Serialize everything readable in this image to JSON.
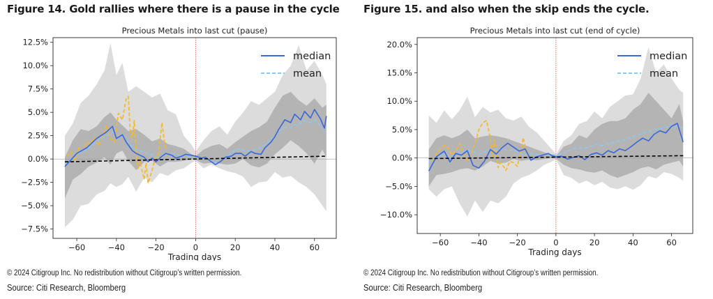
{
  "figures": [
    {
      "heading": "Figure 14. Gold rallies where there is a pause in the cycle",
      "copyright": "© 2024 Citigroup Inc. No redistribution without Citigroup’s written permission.",
      "source": "Source: Citi Research, Bloomberg"
    },
    {
      "heading": "Figure 15. and also when the skip ends the cycle.",
      "copyright": "© 2024 Citigroup Inc. No redistribution without Citigroup’s written permission.",
      "source": "Source: Citi Research, Bloomberg"
    }
  ],
  "chart_data": [
    {
      "type": "line",
      "title": "Precious Metals into last cut (pause)",
      "xlabel": "Trading days",
      "ylabel": "",
      "xlim": [
        -72,
        71
      ],
      "ylim": [
        -8.5,
        13.0
      ],
      "xticks": [
        -60,
        -40,
        -20,
        0,
        20,
        40,
        60
      ],
      "yticks": [
        -7.5,
        -5.0,
        -2.5,
        0.0,
        2.5,
        5.0,
        7.5,
        10.0,
        12.5
      ],
      "ytick_labels": [
        "−7.5%",
        "−5.0%",
        "−2.5%",
        "0.0%",
        "2.5%",
        "5.0%",
        "7.5%",
        "10.0%",
        "12.5%"
      ],
      "xtick_labels": [
        "−60",
        "−40",
        "−20",
        "0",
        "20",
        "40",
        "60"
      ],
      "vline_x": 0,
      "legend": {
        "position": "top-right",
        "entries": [
          "median",
          "mean"
        ]
      },
      "colors": {
        "median": "#3a66d6",
        "mean": "#8cc8f2",
        "highlight": "#f5b82e",
        "trend": "#000000",
        "vline": "#e85a5a",
        "outer_band": "#dcdcdc",
        "inner_band": "#b4b4b4"
      },
      "x": [
        -66,
        -60,
        -55,
        -50,
        -45,
        -42,
        -40,
        -37,
        -35,
        -32,
        -30,
        -28,
        -26,
        -24,
        -22,
        -20,
        -17,
        -15,
        -12,
        -10,
        -7,
        -5,
        -2,
        0,
        3,
        5,
        8,
        10,
        13,
        15,
        18,
        20,
        23,
        25,
        28,
        30,
        33,
        35,
        38,
        40,
        42,
        45,
        48,
        50,
        53,
        55,
        58,
        60,
        63,
        65,
        66
      ],
      "series": [
        {
          "name": "median",
          "values": [
            -0.8,
            0.6,
            1.2,
            2.2,
            2.9,
            3.5,
            2.2,
            2.6,
            1.8,
            0.9,
            0.6,
            0.4,
            0.2,
            -0.3,
            0.1,
            -0.3,
            0.3,
            0.6,
            0.4,
            0.1,
            0.3,
            0.5,
            0.4,
            0.3,
            0.1,
            0.2,
            -0.3,
            -0.6,
            -0.2,
            0.2,
            0.3,
            0.6,
            0.6,
            0.3,
            0.8,
            0.6,
            0.5,
            1.2,
            1.8,
            2.4,
            3.2,
            4.2,
            3.9,
            4.8,
            4.2,
            5.1,
            4.4,
            5.3,
            4.3,
            3.3,
            4.6
          ]
        },
        {
          "name": "mean",
          "values": [
            -0.5,
            0.5,
            1.0,
            1.9,
            2.5,
            2.9,
            2.3,
            2.6,
            2.0,
            1.3,
            1.0,
            0.9,
            0.7,
            0.6,
            0.5,
            0.2,
            0.4,
            0.5,
            0.6,
            0.5,
            0.3,
            0.4,
            0.2,
            0.3,
            0.1,
            0.1,
            -0.2,
            -0.4,
            -0.2,
            0.3,
            0.6,
            1.0,
            1.1,
            0.8,
            0.9,
            1.0,
            1.2,
            1.6,
            2.1,
            2.5,
            2.9,
            3.4,
            3.3,
            3.7,
            3.8,
            4.1,
            3.9,
            4.2,
            3.6,
            3.0,
            2.9
          ]
        }
      ],
      "highlight": {
        "x": [
          -65,
          -63,
          -61,
          -59,
          -57,
          -55,
          -53,
          -51,
          -49,
          -47,
          -45,
          -43,
          -41,
          -39,
          -37,
          -35,
          -34,
          -33,
          -32,
          -31,
          -30,
          -29,
          -28,
          -27,
          -26,
          -25,
          -24,
          -22,
          -20,
          -19,
          -18,
          -17,
          -16,
          -15
        ],
        "values": [
          0.3,
          0.8,
          -0.2,
          1.2,
          0.9,
          1.8,
          1.6,
          2.3,
          1.4,
          2.5,
          3.6,
          2.2,
          1.8,
          4.9,
          4.2,
          6.5,
          6.7,
          3.0,
          2.3,
          4.1,
          0.6,
          -1.0,
          -0.2,
          -1.3,
          -2.2,
          -0.4,
          -2.6,
          -1.2,
          0.4,
          0.1,
          2.0,
          3.9,
          2.2,
          1.0
        ]
      },
      "trend": {
        "x": [
          -66,
          66
        ],
        "values": [
          -0.3,
          0.3
        ]
      },
      "outer_band": {
        "x": [
          -66,
          -62,
          -58,
          -54,
          -50,
          -46,
          -43,
          -40,
          -37,
          -34,
          -30,
          -26,
          -22,
          -18,
          -14,
          -10,
          -6,
          -2,
          0,
          4,
          8,
          12,
          16,
          20,
          24,
          28,
          32,
          36,
          40,
          44,
          48,
          52,
          56,
          60,
          64,
          66
        ],
        "upper": [
          2.5,
          3.8,
          6.0,
          6.8,
          8.0,
          9.5,
          12.4,
          9.0,
          10.3,
          7.2,
          7.8,
          7.2,
          6.6,
          7.0,
          5.2,
          4.8,
          2.5,
          1.5,
          0.8,
          2.0,
          3.0,
          3.5,
          2.6,
          4.0,
          5.0,
          6.2,
          5.8,
          6.5,
          7.2,
          9.0,
          10.0,
          12.2,
          9.5,
          10.5,
          9.0,
          8.0
        ],
        "lower": [
          -7.3,
          -6.5,
          -5.0,
          -4.8,
          -3.8,
          -3.4,
          -2.6,
          -3.0,
          -2.7,
          -1.9,
          -3.5,
          -2.0,
          -2.5,
          -1.5,
          -1.8,
          -1.2,
          -1.0,
          -0.4,
          -0.2,
          -1.0,
          -0.6,
          -1.0,
          -1.3,
          -1.5,
          -1.9,
          -3.0,
          -2.5,
          -2.4,
          -1.4,
          -2.0,
          -1.8,
          -2.5,
          -3.0,
          -3.8,
          -5.0,
          -5.6
        ]
      },
      "inner_band": {
        "x": [
          -66,
          -62,
          -58,
          -54,
          -50,
          -46,
          -43,
          -40,
          -37,
          -34,
          -30,
          -26,
          -22,
          -18,
          -14,
          -10,
          -6,
          -2,
          0,
          4,
          8,
          12,
          16,
          20,
          24,
          28,
          32,
          36,
          40,
          44,
          48,
          52,
          56,
          60,
          64,
          66
        ],
        "upper": [
          0.2,
          2.0,
          3.2,
          3.0,
          3.5,
          4.5,
          5.0,
          4.2,
          3.6,
          3.0,
          3.2,
          2.6,
          1.9,
          2.2,
          1.6,
          1.4,
          1.1,
          0.5,
          0.3,
          1.0,
          1.4,
          1.6,
          1.1,
          1.8,
          2.4,
          3.0,
          3.4,
          4.0,
          5.5,
          6.8,
          7.2,
          6.3,
          5.7,
          6.5,
          5.5,
          5.8
        ],
        "lower": [
          -4.2,
          -2.2,
          -1.6,
          -0.8,
          -0.4,
          0.2,
          -0.6,
          0.6,
          0.9,
          -0.2,
          -1.2,
          -0.3,
          -0.2,
          -0.8,
          -0.3,
          -0.3,
          -0.2,
          0.0,
          -0.1,
          -0.5,
          -0.4,
          -0.5,
          -0.6,
          -0.5,
          0.0,
          -0.7,
          -0.9,
          -0.5,
          0.5,
          1.2,
          2.0,
          1.4,
          0.6,
          -0.5,
          1.0,
          0.2
        ]
      }
    },
    {
      "type": "line",
      "title": "Precious Metals into last cut (end of cycle)",
      "xlabel": "Trading days",
      "ylabel": "",
      "xlim": [
        -72,
        71
      ],
      "ylim": [
        -13.3,
        21.2
      ],
      "xticks": [
        -60,
        -40,
        -20,
        0,
        20,
        40,
        60
      ],
      "yticks": [
        -10,
        -5,
        0,
        5,
        10,
        15,
        20
      ],
      "ytick_labels": [
        "−10.0%",
        "−5.0%",
        "0.0%",
        "5.0%",
        "10.0%",
        "15.0%",
        "20.0%"
      ],
      "xtick_labels": [
        "−60",
        "−40",
        "−20",
        "0",
        "20",
        "40",
        "60"
      ],
      "vline_x": 0,
      "legend": {
        "position": "top-right",
        "entries": [
          "median",
          "mean"
        ]
      },
      "colors": {
        "median": "#3a66d6",
        "mean": "#8cc8f2",
        "highlight": "#f5b82e",
        "trend": "#000000",
        "vline": "#e85a5a",
        "outer_band": "#dcdcdc",
        "inner_band": "#b4b4b4"
      },
      "x": [
        -66,
        -62,
        -58,
        -55,
        -52,
        -49,
        -46,
        -43,
        -40,
        -37,
        -34,
        -31,
        -28,
        -25,
        -22,
        -19,
        -16,
        -13,
        -10,
        -7,
        -4,
        -2,
        0,
        3,
        6,
        9,
        12,
        15,
        18,
        21,
        24,
        27,
        30,
        33,
        36,
        39,
        42,
        45,
        48,
        51,
        54,
        57,
        60,
        63,
        66
      ],
      "series": [
        {
          "name": "median",
          "values": [
            -2.3,
            0.2,
            1.2,
            -0.7,
            0.8,
            0.5,
            1.3,
            -1.3,
            -1.8,
            -0.5,
            1.5,
            0.7,
            1.8,
            2.6,
            1.9,
            1.2,
            1.6,
            -0.4,
            0.2,
            0.5,
            0.8,
            0.4,
            0.2,
            0.3,
            -0.2,
            0.1,
            0.4,
            -0.3,
            0.6,
            0.9,
            0.5,
            1.3,
            0.9,
            1.6,
            1.3,
            2.0,
            2.8,
            3.5,
            3.0,
            4.2,
            4.8,
            4.4,
            5.6,
            6.1,
            2.8
          ]
        },
        {
          "name": "mean",
          "values": [
            -0.8,
            0.1,
            0.7,
            0.0,
            0.8,
            0.9,
            1.4,
            1.1,
            0.7,
            1.0,
            1.6,
            1.4,
            1.7,
            1.3,
            1.5,
            0.8,
            0.6,
            0.8,
            0.6,
            0.5,
            0.4,
            0.6,
            0.5,
            0.7,
            1.2,
            1.6,
            1.8,
            1.7,
            2.0,
            2.4,
            2.2,
            2.6,
            2.7,
            3.0,
            3.2,
            3.7,
            4.0,
            4.4,
            4.6,
            5.0,
            5.2,
            5.4,
            5.8,
            5.5,
            5.3
          ]
        }
      ],
      "highlight": {
        "x": [
          -64,
          -62,
          -60,
          -58,
          -56,
          -54,
          -52,
          -50,
          -48,
          -46,
          -44,
          -42,
          -40,
          -38,
          -36,
          -35,
          -34,
          -33,
          -32,
          -31,
          -30,
          -29,
          -28,
          -27,
          -26,
          -24,
          -22,
          -20,
          -18,
          -17,
          -16,
          -15
        ],
        "values": [
          -0.5,
          0.8,
          1.5,
          2.2,
          1.8,
          0.5,
          1.2,
          2.5,
          0.8,
          -0.4,
          0.6,
          2.6,
          5.0,
          6.2,
          6.6,
          5.0,
          3.2,
          0.2,
          3.2,
          1.2,
          -1.7,
          -0.8,
          -1.2,
          -1.6,
          -2.2,
          -0.6,
          -0.8,
          -1.5,
          1.5,
          3.6,
          2.2,
          0.4
        ]
      },
      "trend": {
        "x": [
          -66,
          66
        ],
        "values": [
          -0.1,
          0.4
        ]
      },
      "outer_band": {
        "x": [
          -66,
          -62,
          -58,
          -54,
          -50,
          -46,
          -42,
          -38,
          -34,
          -30,
          -26,
          -22,
          -18,
          -14,
          -10,
          -6,
          -2,
          0,
          4,
          8,
          12,
          16,
          20,
          24,
          28,
          32,
          36,
          40,
          44,
          48,
          52,
          56,
          60,
          64,
          66
        ],
        "upper": [
          7.5,
          6.2,
          8.4,
          6.8,
          8.4,
          10.8,
          7.2,
          9.0,
          8.0,
          8.5,
          7.0,
          6.6,
          7.3,
          5.5,
          4.5,
          3.0,
          1.5,
          0.6,
          3.0,
          4.0,
          6.0,
          6.5,
          8.2,
          7.0,
          9.0,
          10.0,
          11.0,
          11.2,
          14.0,
          19.5,
          15.0,
          16.5,
          14.0,
          12.0,
          11.5
        ],
        "lower": [
          -5.5,
          -6.8,
          -5.5,
          -5.0,
          -8.0,
          -10.3,
          -7.5,
          -9.5,
          -7.5,
          -8.0,
          -6.8,
          -4.5,
          -3.5,
          -3.0,
          -2.2,
          -1.2,
          -0.6,
          -0.2,
          -3.0,
          -3.5,
          -4.5,
          -4.0,
          -4.8,
          -4.2,
          -5.2,
          -5.5,
          -5.0,
          -5.6,
          -4.8,
          -3.2,
          -3.6,
          -2.5,
          -2.8,
          -3.5,
          -4.0
        ]
      },
      "inner_band": {
        "x": [
          -66,
          -62,
          -58,
          -54,
          -50,
          -46,
          -42,
          -38,
          -34,
          -30,
          -26,
          -22,
          -18,
          -14,
          -10,
          -6,
          -2,
          0,
          4,
          8,
          12,
          16,
          20,
          24,
          28,
          32,
          36,
          40,
          44,
          48,
          52,
          56,
          60,
          64,
          66
        ],
        "upper": [
          1.5,
          3.5,
          4.0,
          3.5,
          4.0,
          5.0,
          3.5,
          3.8,
          4.0,
          3.8,
          3.5,
          3.0,
          2.5,
          2.0,
          1.5,
          1.0,
          0.6,
          0.3,
          2.0,
          2.5,
          4.0,
          3.5,
          5.0,
          6.0,
          6.5,
          6.5,
          7.0,
          8.5,
          9.5,
          11.5,
          10.0,
          8.5,
          7.0,
          9.5,
          6.5
        ],
        "lower": [
          -5.0,
          -3.0,
          -2.8,
          -2.5,
          -2.0,
          -1.8,
          -2.2,
          -1.5,
          -0.5,
          -1.0,
          -0.8,
          -0.2,
          -0.5,
          -0.3,
          -0.4,
          -0.2,
          0.0,
          -0.1,
          -1.2,
          -1.8,
          -2.0,
          -2.4,
          -2.6,
          -2.2,
          -3.0,
          -3.5,
          -3.0,
          -2.5,
          -1.8,
          -1.5,
          -2.0,
          -1.2,
          -0.8,
          -0.5,
          -1.5
        ]
      }
    }
  ]
}
